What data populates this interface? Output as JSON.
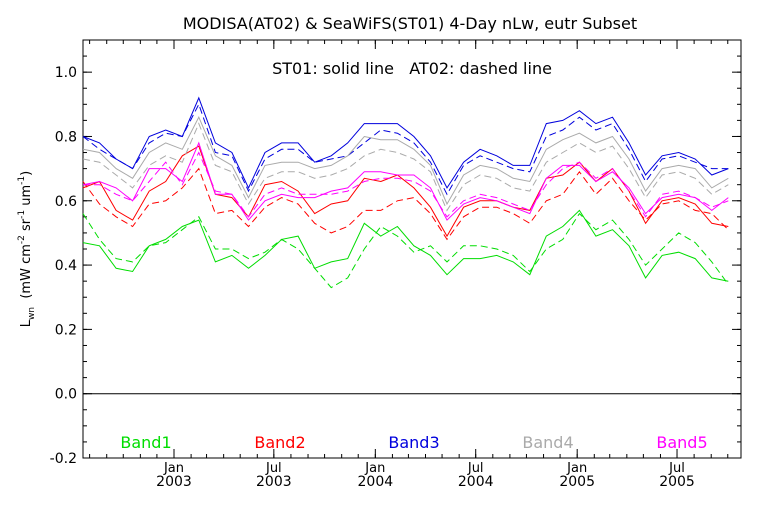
{
  "chart_data": {
    "type": "line",
    "title": "MODISA(AT02) & SeaWiFS(ST01) 4-Day nLw, eutr Subset",
    "annotation": "ST01: solid line   AT02: dashed line",
    "ylabel_main": "L",
    "ylabel_sub": "wn",
    "ylabel_units": "(mW cm",
    "ylabel_units_cm_exp": "-2",
    "ylabel_units_sr": " sr",
    "ylabel_units_sr_exp": "-1",
    "ylabel_units_um": " um",
    "ylabel_units_um_exp": "-1",
    "ylabel_units_close": ")",
    "ylim": [
      -0.2,
      1.1
    ],
    "yticks": [
      -0.2,
      0.0,
      0.2,
      0.4,
      0.6,
      0.8,
      1.0
    ],
    "ytick_labels": [
      "-0.2",
      "0.0",
      "0.2",
      "0.4",
      "0.6",
      "0.8",
      "1.0"
    ],
    "xlim": [
      "2002-07-20",
      "2005-10-25"
    ],
    "xticks": [
      {
        "date": "2003-01-01",
        "month": "Jan",
        "year": "2003"
      },
      {
        "date": "2003-07-01",
        "month": "Jul",
        "year": "2003"
      },
      {
        "date": "2004-01-01",
        "month": "Jan",
        "year": "2004"
      },
      {
        "date": "2004-07-01",
        "month": "Jul",
        "year": "2004"
      },
      {
        "date": "2005-01-01",
        "month": "Jan",
        "year": "2005"
      },
      {
        "date": "2005-07-01",
        "month": "Jul",
        "year": "2005"
      }
    ],
    "zero_line": 0.0,
    "grid": false,
    "legend_position": "bottom",
    "x": [
      "2002-07-20",
      "2002-08-19",
      "2002-09-18",
      "2002-10-18",
      "2002-11-17",
      "2002-12-17",
      "2003-01-16",
      "2003-02-15",
      "2003-03-17",
      "2003-04-16",
      "2003-05-16",
      "2003-06-15",
      "2003-07-15",
      "2003-08-14",
      "2003-09-13",
      "2003-10-13",
      "2003-11-12",
      "2003-12-12",
      "2004-01-11",
      "2004-02-10",
      "2004-03-11",
      "2004-04-10",
      "2004-05-10",
      "2004-06-09",
      "2004-07-09",
      "2004-08-08",
      "2004-09-07",
      "2004-10-07",
      "2004-11-06",
      "2004-12-06",
      "2005-01-05",
      "2005-02-04",
      "2005-03-06",
      "2005-04-05",
      "2005-05-05",
      "2005-06-04",
      "2005-07-04",
      "2005-08-03",
      "2005-09-02",
      "2005-10-02"
    ],
    "series": [
      {
        "name": "Band1",
        "color": "#00dd00",
        "style": "solid",
        "values": [
          0.47,
          0.46,
          0.39,
          0.38,
          0.46,
          0.48,
          0.52,
          0.54,
          0.41,
          0.43,
          0.39,
          0.43,
          0.48,
          0.49,
          0.39,
          0.41,
          0.42,
          0.53,
          0.49,
          0.52,
          0.46,
          0.43,
          0.37,
          0.42,
          0.42,
          0.43,
          0.41,
          0.37,
          0.49,
          0.52,
          0.57,
          0.49,
          0.51,
          0.46,
          0.36,
          0.43,
          0.44,
          0.42,
          0.36,
          0.35
        ]
      },
      {
        "name": "Band1",
        "color": "#00dd00",
        "style": "dashed",
        "values": [
          0.56,
          0.48,
          0.42,
          0.41,
          0.46,
          0.47,
          0.51,
          0.55,
          0.45,
          0.45,
          0.42,
          0.44,
          0.48,
          0.45,
          0.39,
          0.33,
          0.36,
          0.45,
          0.52,
          0.49,
          0.44,
          0.46,
          0.41,
          0.46,
          0.46,
          0.45,
          0.43,
          0.38,
          0.45,
          0.48,
          0.56,
          0.51,
          0.54,
          0.48,
          0.4,
          0.45,
          0.5,
          0.47,
          0.41,
          0.34
        ]
      },
      {
        "name": "Band2",
        "color": "#ff0000",
        "style": "solid",
        "values": [
          0.64,
          0.66,
          0.57,
          0.54,
          0.63,
          0.66,
          0.74,
          0.77,
          0.62,
          0.61,
          0.55,
          0.65,
          0.66,
          0.63,
          0.56,
          0.59,
          0.6,
          0.67,
          0.66,
          0.68,
          0.64,
          0.58,
          0.49,
          0.58,
          0.6,
          0.6,
          0.58,
          0.57,
          0.67,
          0.68,
          0.72,
          0.66,
          0.7,
          0.63,
          0.53,
          0.6,
          0.61,
          0.59,
          0.53,
          0.52
        ]
      },
      {
        "name": "Band2",
        "color": "#ff0000",
        "style": "dashed",
        "values": [
          0.66,
          0.59,
          0.55,
          0.52,
          0.59,
          0.6,
          0.64,
          0.7,
          0.56,
          0.57,
          0.52,
          0.58,
          0.61,
          0.59,
          0.53,
          0.5,
          0.52,
          0.57,
          0.57,
          0.6,
          0.61,
          0.56,
          0.48,
          0.55,
          0.58,
          0.58,
          0.56,
          0.53,
          0.6,
          0.62,
          0.69,
          0.62,
          0.67,
          0.6,
          0.54,
          0.59,
          0.6,
          0.57,
          0.56,
          0.51
        ]
      },
      {
        "name": "Band3",
        "color": "#0000dd",
        "style": "solid",
        "values": [
          0.8,
          0.78,
          0.73,
          0.7,
          0.8,
          0.82,
          0.8,
          0.92,
          0.78,
          0.75,
          0.64,
          0.75,
          0.78,
          0.78,
          0.72,
          0.74,
          0.78,
          0.84,
          0.84,
          0.84,
          0.8,
          0.74,
          0.64,
          0.72,
          0.76,
          0.74,
          0.71,
          0.71,
          0.84,
          0.85,
          0.88,
          0.84,
          0.86,
          0.78,
          0.68,
          0.74,
          0.75,
          0.73,
          0.68,
          0.7
        ]
      },
      {
        "name": "Band3",
        "color": "#0000dd",
        "style": "dashed",
        "values": [
          0.8,
          0.76,
          0.73,
          0.7,
          0.78,
          0.81,
          0.8,
          0.9,
          0.75,
          0.74,
          0.63,
          0.73,
          0.76,
          0.76,
          0.72,
          0.73,
          0.74,
          0.78,
          0.82,
          0.81,
          0.78,
          0.72,
          0.62,
          0.71,
          0.74,
          0.72,
          0.7,
          0.69,
          0.8,
          0.82,
          0.86,
          0.82,
          0.84,
          0.76,
          0.66,
          0.73,
          0.74,
          0.72,
          0.7,
          0.7
        ]
      },
      {
        "name": "Band4",
        "color": "#aaaaaa",
        "style": "solid",
        "values": [
          0.76,
          0.75,
          0.7,
          0.67,
          0.75,
          0.78,
          0.76,
          0.86,
          0.74,
          0.71,
          0.61,
          0.71,
          0.72,
          0.72,
          0.7,
          0.71,
          0.74,
          0.8,
          0.79,
          0.79,
          0.76,
          0.71,
          0.59,
          0.68,
          0.71,
          0.7,
          0.67,
          0.66,
          0.76,
          0.79,
          0.81,
          0.78,
          0.8,
          0.73,
          0.63,
          0.7,
          0.71,
          0.7,
          0.64,
          0.67
        ]
      },
      {
        "name": "Band4",
        "color": "#aaaaaa",
        "style": "dashed",
        "values": [
          0.73,
          0.72,
          0.68,
          0.64,
          0.71,
          0.74,
          0.72,
          0.84,
          0.71,
          0.69,
          0.59,
          0.67,
          0.69,
          0.69,
          0.67,
          0.68,
          0.7,
          0.74,
          0.76,
          0.75,
          0.73,
          0.69,
          0.57,
          0.65,
          0.68,
          0.67,
          0.64,
          0.63,
          0.72,
          0.75,
          0.78,
          0.75,
          0.77,
          0.7,
          0.61,
          0.68,
          0.69,
          0.67,
          0.62,
          0.65
        ]
      },
      {
        "name": "Band5",
        "color": "#ff00ff",
        "style": "solid",
        "values": [
          0.65,
          0.66,
          0.64,
          0.6,
          0.7,
          0.7,
          0.66,
          0.78,
          0.62,
          0.62,
          0.54,
          0.6,
          0.62,
          0.61,
          0.61,
          0.63,
          0.64,
          0.69,
          0.69,
          0.68,
          0.68,
          0.64,
          0.54,
          0.59,
          0.61,
          0.6,
          0.58,
          0.56,
          0.67,
          0.71,
          0.71,
          0.66,
          0.69,
          0.64,
          0.56,
          0.61,
          0.62,
          0.61,
          0.57,
          0.61
        ]
      },
      {
        "name": "Band5",
        "color": "#ff00ff",
        "style": "dashed",
        "values": [
          0.65,
          0.65,
          0.62,
          0.6,
          0.66,
          0.72,
          0.65,
          0.75,
          0.63,
          0.62,
          0.55,
          0.62,
          0.64,
          0.62,
          0.62,
          0.62,
          0.63,
          0.66,
          0.67,
          0.67,
          0.66,
          0.63,
          0.55,
          0.6,
          0.62,
          0.61,
          0.59,
          0.57,
          0.65,
          0.7,
          0.72,
          0.67,
          0.7,
          0.63,
          0.55,
          0.62,
          0.63,
          0.61,
          0.58,
          0.6
        ]
      }
    ],
    "legend": [
      {
        "label": "Band1",
        "color": "#00dd00"
      },
      {
        "label": "Band2",
        "color": "#ff0000"
      },
      {
        "label": "Band3",
        "color": "#0000dd"
      },
      {
        "label": "Band4",
        "color": "#aaaaaa"
      },
      {
        "label": "Band5",
        "color": "#ff00ff"
      }
    ]
  }
}
